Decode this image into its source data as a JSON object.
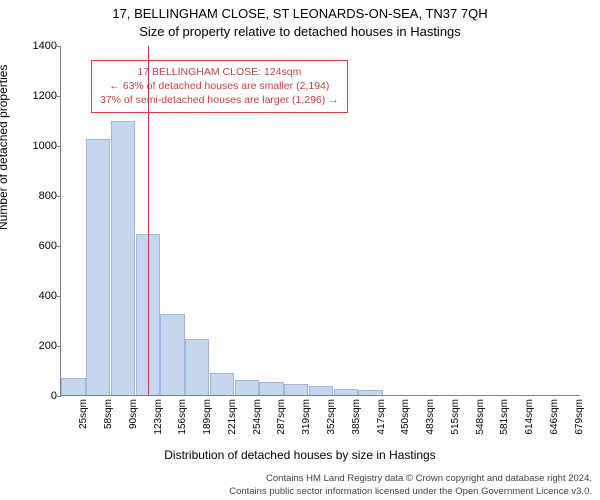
{
  "chart": {
    "type": "histogram",
    "title_line1": "17, BELLINGHAM CLOSE, ST LEONARDS-ON-SEA, TN37 7QH",
    "title_line2": "Size of property relative to detached houses in Hastings",
    "ylabel": "Number of detached properties",
    "xlabel": "Distribution of detached houses by size in Hastings",
    "background_color": "#ffffff",
    "axis_color": "#808080",
    "bar_fill": "#c7d6ef",
    "bar_stroke": "#9fb6dd",
    "ref_line_color": "#c83c3c",
    "annotation_border": "#d04040",
    "annotation_text_color": "#d04040",
    "label_fontsize": 12,
    "tick_fontsize": 11,
    "title_fontsize": 13,
    "ylim_max": 1400,
    "ytick_step": 200,
    "yticks": [
      0,
      200,
      400,
      600,
      800,
      1000,
      1200,
      1400
    ],
    "x_categories": [
      "25sqm",
      "58sqm",
      "90sqm",
      "123sqm",
      "156sqm",
      "189sqm",
      "221sqm",
      "254sqm",
      "287sqm",
      "319sqm",
      "352sqm",
      "385sqm",
      "417sqm",
      "450sqm",
      "483sqm",
      "515sqm",
      "548sqm",
      "581sqm",
      "614sqm",
      "646sqm",
      "679sqm"
    ],
    "bar_values": [
      70,
      1025,
      1095,
      645,
      325,
      225,
      90,
      60,
      52,
      45,
      35,
      25,
      20,
      0,
      0,
      0,
      0,
      0,
      0,
      0,
      0
    ],
    "ref_line_x_value": 124,
    "x_axis_min": 25,
    "x_axis_step": 32.7,
    "annotation": {
      "line1": "17 BELLINGHAM CLOSE: 124sqm",
      "line2": "← 63% of detached houses are smaller (2,194)",
      "line3": "37% of semi-detached houses are larger (1,296) →"
    },
    "footer_line1": "Contains HM Land Registry data © Crown copyright and database right 2024.",
    "footer_line2": "Contains public sector information licensed under the Open Government Licence v3.0."
  }
}
